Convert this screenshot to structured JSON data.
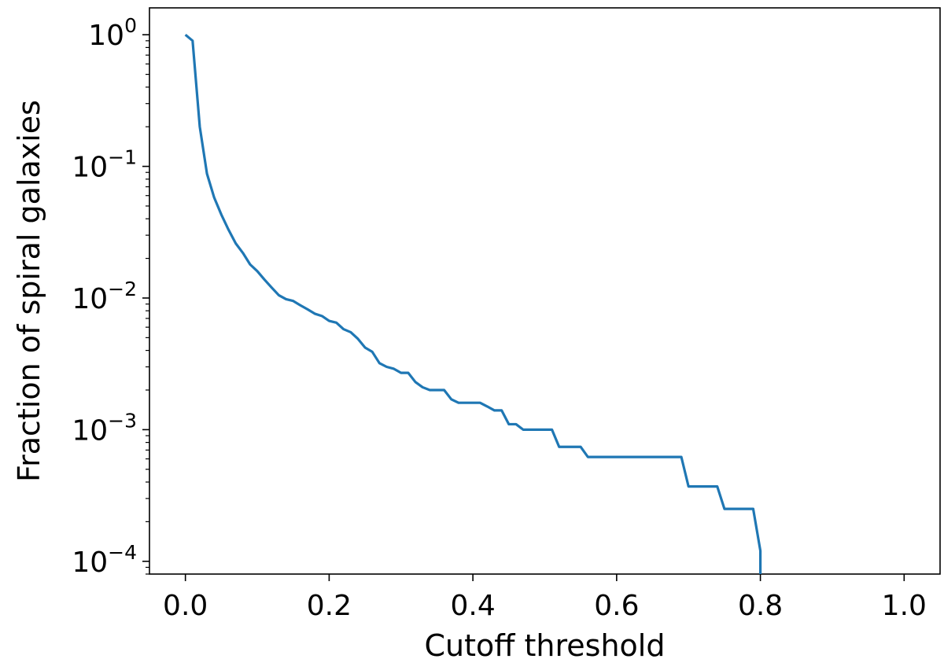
{
  "chart_data": {
    "type": "line",
    "title": "",
    "xlabel": "Cutoff threshold",
    "ylabel": "Fraction of spiral galaxies",
    "x_scale": "linear",
    "y_scale": "log",
    "xlim": [
      -0.05,
      1.05
    ],
    "ylim": [
      8e-05,
      1.6
    ],
    "x_ticks": [
      {
        "value": 0.0,
        "label": "0.0"
      },
      {
        "value": 0.2,
        "label": "0.2"
      },
      {
        "value": 0.4,
        "label": "0.4"
      },
      {
        "value": 0.6,
        "label": "0.6"
      },
      {
        "value": 0.8,
        "label": "0.8"
      },
      {
        "value": 1.0,
        "label": "1.0"
      }
    ],
    "y_ticks": [
      {
        "value": 1,
        "base": "10",
        "exp": "0"
      },
      {
        "value": 0.1,
        "base": "10",
        "exp": "−1"
      },
      {
        "value": 0.01,
        "base": "10",
        "exp": "−2"
      },
      {
        "value": 0.001,
        "base": "10",
        "exp": "−3"
      },
      {
        "value": 0.0001,
        "base": "10",
        "exp": "−4"
      }
    ],
    "grid": false,
    "line_color": "#1f77b4",
    "series": [
      {
        "x": [
          0.0,
          0.01,
          0.02,
          0.03,
          0.04,
          0.05,
          0.06,
          0.07,
          0.08,
          0.09,
          0.1,
          0.11,
          0.12,
          0.13,
          0.14,
          0.15,
          0.16,
          0.17,
          0.18,
          0.19,
          0.2,
          0.21,
          0.22,
          0.23,
          0.24,
          0.25,
          0.26,
          0.27,
          0.28,
          0.29,
          0.3,
          0.31,
          0.32,
          0.33,
          0.34,
          0.35,
          0.36,
          0.37,
          0.38,
          0.39,
          0.4,
          0.41,
          0.42,
          0.43,
          0.44,
          0.45,
          0.46,
          0.47,
          0.48,
          0.49,
          0.5,
          0.51,
          0.52,
          0.53,
          0.54,
          0.55,
          0.56,
          0.57,
          0.58,
          0.59,
          0.6,
          0.61,
          0.62,
          0.63,
          0.64,
          0.65,
          0.66,
          0.67,
          0.68,
          0.69,
          0.7,
          0.71,
          0.72,
          0.73,
          0.74,
          0.75,
          0.76,
          0.77,
          0.78,
          0.79,
          0.8
        ],
        "y": [
          1.0,
          0.9,
          0.2,
          0.088,
          0.058,
          0.043,
          0.033,
          0.026,
          0.022,
          0.018,
          0.016,
          0.0138,
          0.012,
          0.0105,
          0.0098,
          0.0095,
          0.0088,
          0.0082,
          0.0076,
          0.0073,
          0.0067,
          0.0065,
          0.0058,
          0.0055,
          0.0049,
          0.0042,
          0.0039,
          0.0032,
          0.003,
          0.0029,
          0.0027,
          0.0027,
          0.0023,
          0.0021,
          0.002,
          0.002,
          0.002,
          0.0017,
          0.0016,
          0.0016,
          0.0016,
          0.0016,
          0.0015,
          0.0014,
          0.0014,
          0.0011,
          0.0011,
          0.001,
          0.001,
          0.001,
          0.001,
          0.001,
          0.00074,
          0.00074,
          0.00074,
          0.00074,
          0.00062,
          0.00062,
          0.00062,
          0.00062,
          0.00062,
          0.00062,
          0.00062,
          0.00062,
          0.00062,
          0.00062,
          0.00062,
          0.00062,
          0.00062,
          0.00062,
          0.00037,
          0.00037,
          0.00037,
          0.00037,
          0.00037,
          0.00025,
          0.00025,
          0.00025,
          0.00025,
          0.00025,
          0.00012
        ]
      }
    ]
  }
}
